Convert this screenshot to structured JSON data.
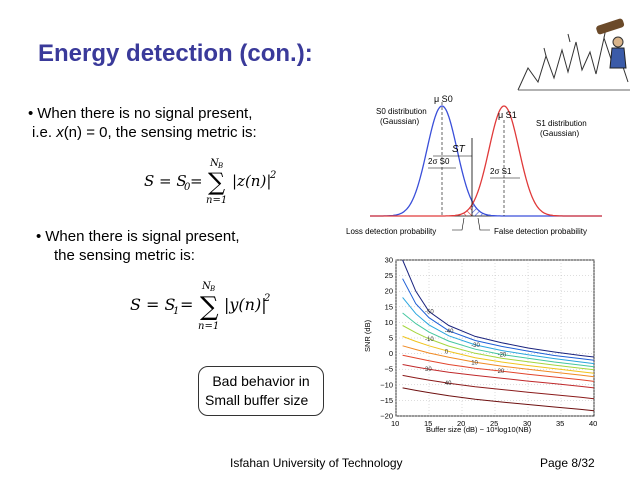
{
  "slide": {
    "title": "Energy detection (con.):",
    "bullet1": {
      "marker": "•",
      "line1": "When there is no signal present,",
      "line2_prefix": "i.e. ",
      "line2_var": "x",
      "line2_mid": "(n)",
      "line2_suffix": " = 0, the sensing metric is:"
    },
    "bullet2": {
      "marker": "•",
      "line1": "When there is signal present,",
      "line2": "the sensing metric is:"
    },
    "eq1": {
      "lhs": "S = S",
      "sub0": "0",
      "eq": " = ",
      "upper": "N",
      "upper_sub": "B",
      "lower": "n=1",
      "body": "|z(n)|",
      "power": "2"
    },
    "eq2": {
      "lhs": "S = S",
      "sub1": "1",
      "eq": " = ",
      "upper": "N",
      "upper_sub": "B",
      "lower": "n=1",
      "body": "|y(n)|",
      "power": "2"
    },
    "callout": {
      "line1": "Bad behavior in",
      "line2": "Small buffer size"
    },
    "footer": {
      "institution": "Isfahan University of Technology",
      "page": "Page 8/32"
    }
  },
  "distribution_figure": {
    "mu_s0": "μ S0",
    "mu_s1": "μ S1",
    "s0_label_l1": "S0 distribution",
    "s0_label_l2": "(Gaussian)",
    "s1_label_l1": "S1 distribution",
    "s1_label_l2": "(Gaussian)",
    "threshold": "ST",
    "sigma0": "2σ S0",
    "sigma1": "2σ S1",
    "loss_label": "Loss detection probability",
    "false_label": "False detection probability",
    "colors": {
      "s0": "#3a4fd9",
      "s1": "#e03a3a",
      "hatch_blue": "#3a4fd9",
      "hatch_red": "#e03a3a"
    }
  },
  "chart_data": {
    "type": "line",
    "title": "",
    "xlabel": "Buffer size (dB) − 10*log10(NB)",
    "ylabel": "SNR (dB)",
    "xlim": [
      10,
      40
    ],
    "ylim": [
      -20,
      30
    ],
    "x_ticks": [
      "10",
      "15",
      "20",
      "25",
      "30",
      "35",
      "40"
    ],
    "y_ticks": [
      "−20",
      "−15",
      "−10",
      "−5",
      "0",
      "5",
      "10",
      "15",
      "20",
      "25",
      "30"
    ],
    "grid": true,
    "contour_labels": [
      "-50",
      "-40",
      "-30",
      "-20",
      "-10",
      "0",
      "10",
      "20",
      "30",
      "40"
    ],
    "series": [
      {
        "color": "#1a237e",
        "x": [
          11,
          13,
          15,
          18,
          22,
          26,
          30,
          34,
          38,
          40
        ],
        "y": [
          30,
          20,
          13.5,
          9,
          5.5,
          3.5,
          1.8,
          0.5,
          -0.6,
          -1.1
        ]
      },
      {
        "color": "#1e5fd6",
        "x": [
          11,
          13,
          15,
          18,
          22,
          26,
          30,
          34,
          38,
          40
        ],
        "y": [
          24,
          16,
          11.5,
          7.3,
          4.2,
          2.3,
          0.8,
          -0.6,
          -1.6,
          -2.1
        ]
      },
      {
        "color": "#2aa6df",
        "x": [
          11,
          13,
          15,
          18,
          22,
          26,
          30,
          34,
          38,
          40
        ],
        "y": [
          18,
          12.8,
          9.2,
          5.7,
          2.8,
          1.0,
          -0.4,
          -1.6,
          -2.7,
          -3.2
        ]
      },
      {
        "color": "#45c7a0",
        "x": [
          11,
          13,
          15,
          18,
          22,
          26,
          30,
          34,
          38,
          40
        ],
        "y": [
          13,
          9.6,
          6.9,
          4.0,
          1.4,
          -0.3,
          -1.5,
          -2.7,
          -3.7,
          -4.2
        ]
      },
      {
        "color": "#a6d63d",
        "x": [
          11,
          13,
          15,
          18,
          22,
          26,
          30,
          34,
          38,
          40
        ],
        "y": [
          9,
          6.7,
          4.7,
          2.4,
          0.1,
          -1.5,
          -2.6,
          -3.7,
          -4.7,
          -5.2
        ]
      },
      {
        "color": "#f0c41d",
        "x": [
          11,
          13,
          15,
          18,
          22,
          26,
          30,
          34,
          38,
          40
        ],
        "y": [
          5.5,
          3.9,
          2.5,
          0.7,
          -1.3,
          -2.7,
          -3.8,
          -4.8,
          -5.8,
          -6.3
        ]
      },
      {
        "color": "#f08a24",
        "x": [
          11,
          13,
          15,
          18,
          22,
          26,
          30,
          34,
          38,
          40
        ],
        "y": [
          2.5,
          1.3,
          0.2,
          -1.2,
          -2.8,
          -4.0,
          -5.0,
          -6.0,
          -6.9,
          -7.4
        ]
      },
      {
        "color": "#e2452c",
        "x": [
          11,
          13,
          15,
          18,
          22,
          26,
          30,
          34,
          38,
          40
        ],
        "y": [
          -0.5,
          -1.4,
          -2.3,
          -3.5,
          -4.7,
          -5.6,
          -6.6,
          -7.5,
          -8.4,
          -8.9
        ]
      },
      {
        "color": "#c0282a",
        "x": [
          11,
          13,
          15,
          18,
          22,
          26,
          30,
          34,
          38,
          40
        ],
        "y": [
          -3.5,
          -4.3,
          -5.0,
          -6.0,
          -7.0,
          -7.9,
          -8.8,
          -9.6,
          -10.5,
          -11
        ]
      },
      {
        "color": "#8b1a1a",
        "x": [
          11,
          13,
          15,
          18,
          22,
          26,
          30,
          34,
          38,
          40
        ],
        "y": [
          -7,
          -7.8,
          -8.5,
          -9.5,
          -10.6,
          -11.5,
          -12.4,
          -13.2,
          -14.0,
          -14.5
        ]
      },
      {
        "color": "#6e1010",
        "x": [
          11,
          13,
          15,
          18,
          22,
          26,
          30,
          34,
          38,
          40
        ],
        "y": [
          -11,
          -11.8,
          -12.5,
          -13.5,
          -14.6,
          -15.5,
          -16.3,
          -17.1,
          -17.9,
          -18.3
        ]
      }
    ]
  }
}
